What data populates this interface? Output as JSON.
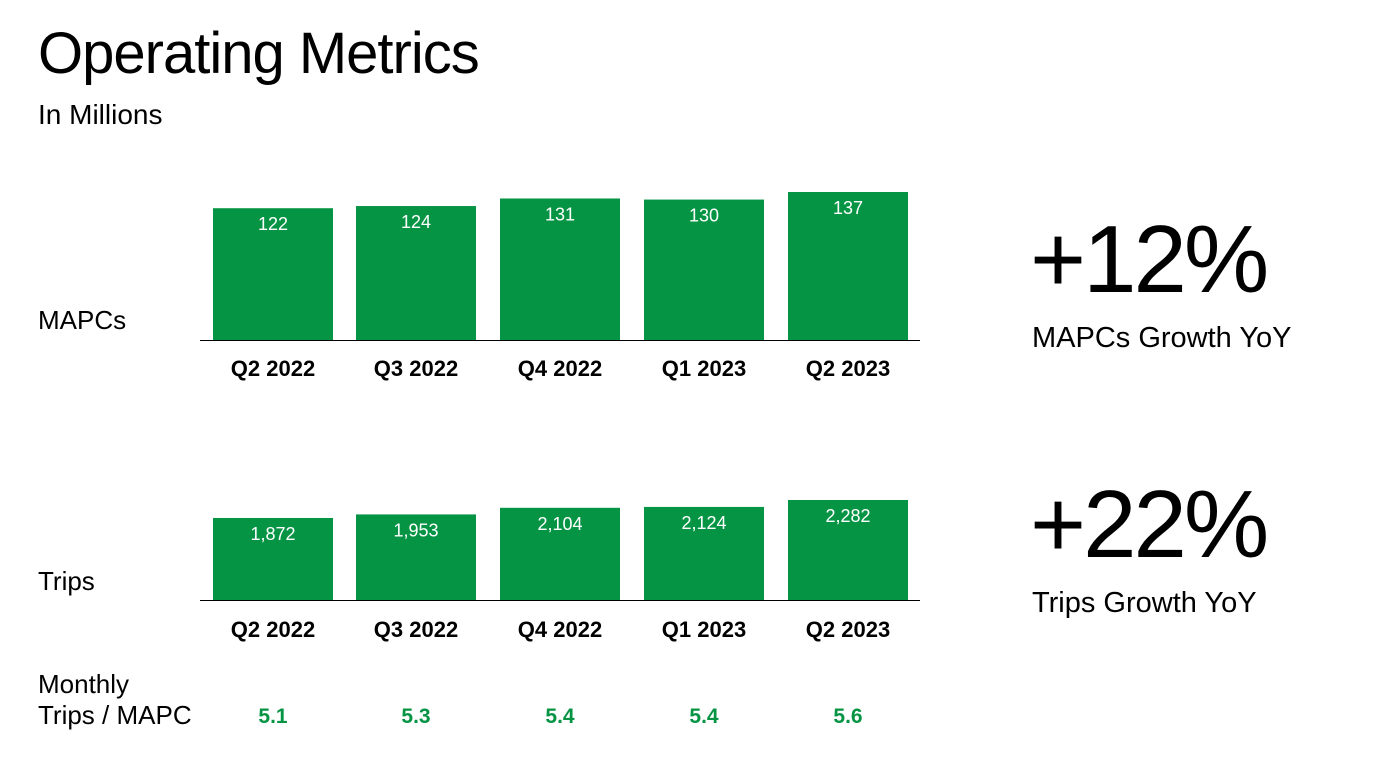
{
  "title": "Operating Metrics",
  "subtitle": "In Millions",
  "colors": {
    "bar": "#059444",
    "ratio_text": "#059444",
    "axis": "#000000"
  },
  "chart_data": [
    {
      "type": "bar",
      "row_label": "MAPCs",
      "categories": [
        "Q2 2022",
        "Q3 2022",
        "Q4 2022",
        "Q1 2023",
        "Q2 2023"
      ],
      "values": [
        122,
        124,
        131,
        130,
        137
      ],
      "value_labels": [
        "122",
        "124",
        "131",
        "130",
        "137"
      ],
      "ylim": [
        0,
        137
      ]
    },
    {
      "type": "bar",
      "row_label": "Trips",
      "categories": [
        "Q2 2022",
        "Q3 2022",
        "Q4 2022",
        "Q1 2023",
        "Q2 2023"
      ],
      "values": [
        1872,
        1953,
        2104,
        2124,
        2282
      ],
      "value_labels": [
        "1,872",
        "1,953",
        "2,104",
        "2,124",
        "2,282"
      ],
      "ylim": [
        0,
        2282
      ]
    }
  ],
  "ratio_row": {
    "label_line1": "Monthly",
    "label_line2": "Trips / MAPC",
    "values": [
      "5.1",
      "5.3",
      "5.4",
      "5.4",
      "5.6"
    ]
  },
  "kpis": [
    {
      "value": "+12%",
      "label": "MAPCs Growth YoY"
    },
    {
      "value": "+22%",
      "label": "Trips Growth YoY"
    }
  ]
}
